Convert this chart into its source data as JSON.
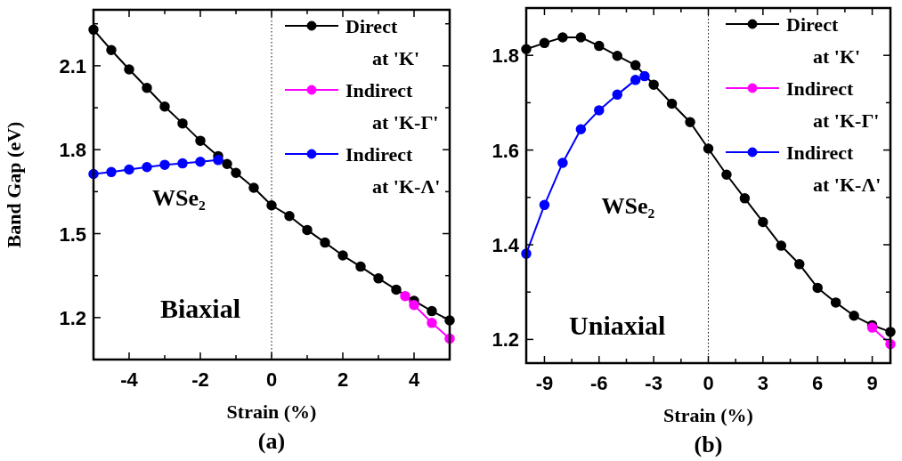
{
  "chart_data": [
    {
      "type": "line",
      "xlabel": "Strain (%)",
      "ylabel": "Band Gap (eV)",
      "xlim": [
        -5,
        5
      ],
      "ylim": [
        1.05,
        2.3
      ],
      "xticks": [
        {
          "value": -5,
          "label": null
        },
        -4,
        {
          "value": -3,
          "label": null
        },
        -2,
        {
          "value": -1,
          "label": null
        },
        0,
        {
          "value": 1,
          "label": null
        },
        2,
        {
          "value": 3,
          "label": null
        },
        4,
        {
          "value": 5,
          "label": null
        }
      ],
      "yticks": [
        1.2,
        {
          "value": 1.35,
          "label": null
        },
        1.5,
        {
          "value": 1.65,
          "label": null
        },
        1.8,
        {
          "value": 1.95,
          "label": null
        },
        2.1,
        {
          "value": 2.25,
          "label": null
        }
      ],
      "grid": false,
      "legend": "top right",
      "marker": "circle",
      "line_style": "solid",
      "ref_lines": [
        {
          "axis": "x",
          "value": 0,
          "line_style": "dotted"
        }
      ],
      "annotations": [
        "WSe₂",
        "Biaxial",
        "(a)"
      ],
      "series": [
        {
          "name": "Direct at 'K'",
          "color": "#000000",
          "x": [
            -5,
            -4.5,
            -4,
            -3.5,
            -3,
            -2.5,
            -2,
            -1.5,
            -1.25,
            -1,
            -0.5,
            0,
            0.5,
            1,
            1.5,
            2,
            2.5,
            3,
            3.5,
            4,
            4.5,
            5
          ],
          "values": [
            2.229,
            2.156,
            2.087,
            2.021,
            1.954,
            1.894,
            1.832,
            1.777,
            1.749,
            1.717,
            1.664,
            1.601,
            1.563,
            1.513,
            1.468,
            1.422,
            1.382,
            1.34,
            1.3,
            1.26,
            1.223,
            1.19
          ]
        },
        {
          "name": "Indirect at 'K-Γ'",
          "color": "#ff00ff",
          "x": [
            3.75,
            4,
            4.5,
            5
          ],
          "values": [
            1.277,
            1.245,
            1.181,
            1.125
          ]
        },
        {
          "name": "Indirect at 'K-Λ'",
          "color": "#0000ff",
          "x": [
            -5,
            -4.5,
            -4,
            -3.5,
            -3,
            -2.5,
            -2,
            -1.5
          ],
          "values": [
            1.713,
            1.72,
            1.729,
            1.738,
            1.746,
            1.751,
            1.757,
            1.763
          ]
        }
      ]
    },
    {
      "type": "line",
      "xlabel": "Strain (%)",
      "xlim": [
        -10,
        10
      ],
      "ylim": [
        1.15,
        1.9
      ],
      "xticks": [
        -9,
        {
          "value": -7.5,
          "label": null
        },
        -6,
        {
          "value": -4.5,
          "label": null
        },
        -3,
        {
          "value": -1.5,
          "label": null
        },
        0,
        {
          "value": 1.5,
          "label": null
        },
        3,
        {
          "value": 4.5,
          "label": null
        },
        6,
        {
          "value": 7.5,
          "label": null
        },
        9
      ],
      "yticks": [
        1.2,
        {
          "value": 1.3,
          "label": null
        },
        1.4,
        {
          "value": 1.5,
          "label": null
        },
        1.6,
        {
          "value": 1.7,
          "label": null
        },
        1.8
      ],
      "grid": false,
      "legend": "top right",
      "marker": "circle",
      "line_style": "solid",
      "ref_lines": [
        {
          "axis": "x",
          "value": 0,
          "line_style": "dotted"
        }
      ],
      "annotations": [
        "WSe₂",
        "Uniaxial",
        "(b)"
      ],
      "series": [
        {
          "name": "Direct at 'K'",
          "color": "#000000",
          "x": [
            -10,
            -9,
            -8,
            -7,
            -6,
            -5,
            -4,
            -3,
            -2,
            -1,
            0,
            1,
            2,
            3,
            4,
            5,
            6,
            7,
            8,
            9,
            10
          ],
          "values": [
            1.813,
            1.826,
            1.838,
            1.838,
            1.82,
            1.799,
            1.779,
            1.738,
            1.698,
            1.659,
            1.603,
            1.548,
            1.498,
            1.448,
            1.398,
            1.359,
            1.309,
            1.278,
            1.25,
            1.23,
            1.216
          ]
        },
        {
          "name": "Indirect at 'K-Γ'",
          "color": "#ff00ff",
          "x": [
            9,
            10
          ],
          "values": [
            1.225,
            1.19
          ]
        },
        {
          "name": "Indirect at 'K-Λ'",
          "color": "#0000ff",
          "x": [
            -10,
            -9,
            -8,
            -7,
            -6,
            -5,
            -4,
            -3.5
          ],
          "values": [
            1.381,
            1.484,
            1.573,
            1.644,
            1.684,
            1.717,
            1.748,
            1.756
          ]
        }
      ]
    }
  ]
}
